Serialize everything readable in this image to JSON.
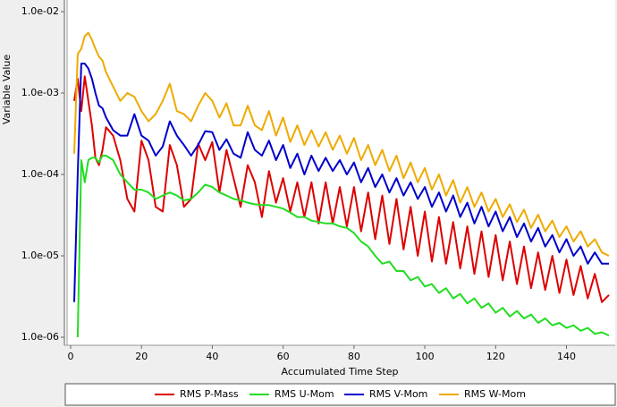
{
  "chart_data": {
    "type": "line",
    "y_label": "Variable Value",
    "x_label": "Accumulated Time Step",
    "y_log_scale": true,
    "xlim": [
      0,
      153
    ],
    "xticks": [
      0,
      20,
      40,
      60,
      80,
      100,
      120,
      140
    ],
    "ylim": [
      1e-06,
      0.01
    ],
    "yticks": [
      {
        "value": 0.01,
        "label": "1.0e-02"
      },
      {
        "value": 0.001,
        "label": "1.0e-03"
      },
      {
        "value": 0.0001,
        "label": "1.0e-04"
      },
      {
        "value": 1e-05,
        "label": "1.0e-05"
      },
      {
        "value": 1e-06,
        "label": "1.0e-06"
      }
    ],
    "legend_position": "bottom",
    "x": [
      1,
      2,
      3,
      4,
      5,
      6,
      7,
      8,
      9,
      10,
      12,
      14,
      16,
      18,
      20,
      22,
      24,
      26,
      28,
      30,
      32,
      34,
      36,
      38,
      40,
      42,
      44,
      46,
      48,
      50,
      52,
      54,
      56,
      58,
      60,
      62,
      64,
      66,
      68,
      70,
      72,
      74,
      76,
      78,
      80,
      82,
      84,
      86,
      88,
      90,
      92,
      94,
      96,
      98,
      100,
      102,
      104,
      106,
      108,
      110,
      112,
      114,
      116,
      118,
      120,
      122,
      124,
      126,
      128,
      130,
      132,
      134,
      136,
      138,
      140,
      142,
      144,
      146,
      148,
      150,
      152
    ],
    "series": [
      {
        "name": "RMS P-Mass",
        "color": "#dd0000",
        "values": [
          0.0008,
          0.0015,
          0.0006,
          0.0016,
          0.0008,
          0.0004,
          0.00016,
          0.00013,
          0.0002,
          0.00038,
          0.0003,
          0.00015,
          5e-05,
          3.5e-05,
          0.00026,
          0.00015,
          4e-05,
          3.5e-05,
          0.00023,
          0.00013,
          4e-05,
          5e-05,
          0.00024,
          0.00015,
          0.00025,
          6e-05,
          0.0002,
          9e-05,
          4e-05,
          0.00013,
          8e-05,
          3e-05,
          0.00011,
          4.5e-05,
          9e-05,
          3.5e-05,
          8e-05,
          3e-05,
          8e-05,
          2.5e-05,
          8e-05,
          2.5e-05,
          7e-05,
          2.3e-05,
          7e-05,
          2e-05,
          6e-05,
          1.6e-05,
          5.5e-05,
          1.4e-05,
          5e-05,
          1.2e-05,
          4e-05,
          1e-05,
          3.5e-05,
          8.5e-06,
          3e-05,
          8e-06,
          2.6e-05,
          7e-06,
          2.3e-05,
          6e-06,
          2e-05,
          5.5e-06,
          1.8e-05,
          5e-06,
          1.5e-05,
          4.5e-06,
          1.3e-05,
          4e-06,
          1.1e-05,
          3.8e-06,
          1e-05,
          3.5e-06,
          9e-06,
          3.3e-06,
          7.5e-06,
          3e-06,
          6e-06,
          2.7e-06,
          3.3e-06
        ]
      },
      {
        "name": "RMS U-Mom",
        "color": "#22dd22",
        "values": [
          null,
          1e-06,
          0.00015,
          8e-05,
          0.00015,
          0.00016,
          0.00016,
          0.00014,
          0.00017,
          0.00017,
          0.00015,
          0.0001,
          8e-05,
          6.5e-05,
          6.5e-05,
          6e-05,
          5e-05,
          5.5e-05,
          6e-05,
          5.5e-05,
          4.8e-05,
          5e-05,
          6e-05,
          7.5e-05,
          7e-05,
          6e-05,
          5.5e-05,
          5e-05,
          4.8e-05,
          4.5e-05,
          4.3e-05,
          4.2e-05,
          4.2e-05,
          4e-05,
          3.8e-05,
          3.4e-05,
          3e-05,
          3e-05,
          2.7e-05,
          2.6e-05,
          2.5e-05,
          2.5e-05,
          2.3e-05,
          2.2e-05,
          1.9e-05,
          1.5e-05,
          1.3e-05,
          1e-05,
          8e-06,
          8.5e-06,
          6.5e-06,
          6.5e-06,
          5e-06,
          5.5e-06,
          4.2e-06,
          4.5e-06,
          3.5e-06,
          4e-06,
          3e-06,
          3.4e-06,
          2.6e-06,
          3e-06,
          2.3e-06,
          2.6e-06,
          2e-06,
          2.3e-06,
          1.8e-06,
          2.1e-06,
          1.7e-06,
          1.9e-06,
          1.5e-06,
          1.7e-06,
          1.4e-06,
          1.5e-06,
          1.3e-06,
          1.4e-06,
          1.2e-06,
          1.3e-06,
          1.1e-06,
          1.15e-06,
          1.05e-06
        ]
      },
      {
        "name": "RMS V-Mom",
        "color": "#0000cc",
        "values": [
          2.7e-06,
          0.0001,
          0.0023,
          0.0023,
          0.002,
          0.0015,
          0.001,
          0.0007,
          0.00065,
          0.0005,
          0.00035,
          0.0003,
          0.0003,
          0.00055,
          0.0003,
          0.00026,
          0.00017,
          0.00022,
          0.00045,
          0.0003,
          0.00023,
          0.00017,
          0.00023,
          0.00034,
          0.00033,
          0.0002,
          0.00027,
          0.00018,
          0.00016,
          0.00033,
          0.0002,
          0.00017,
          0.00026,
          0.00015,
          0.00023,
          0.00012,
          0.00018,
          0.0001,
          0.00017,
          0.00011,
          0.00016,
          0.00011,
          0.00015,
          0.0001,
          0.00014,
          8e-05,
          0.00012,
          7e-05,
          0.0001,
          6e-05,
          9e-05,
          5.5e-05,
          8e-05,
          5e-05,
          7e-05,
          4e-05,
          6e-05,
          3.5e-05,
          5.5e-05,
          3e-05,
          4.5e-05,
          2.5e-05,
          4e-05,
          2.3e-05,
          3.5e-05,
          2e-05,
          3e-05,
          1.7e-05,
          2.5e-05,
          1.5e-05,
          2.2e-05,
          1.3e-05,
          1.8e-05,
          1.1e-05,
          1.6e-05,
          1e-05,
          1.3e-05,
          8e-06,
          1.1e-05,
          8e-06,
          8e-06
        ]
      },
      {
        "name": "RMS W-Mom",
        "color": "#eeaa00",
        "values": [
          0.00018,
          0.003,
          0.0035,
          0.005,
          0.0055,
          0.0045,
          0.0035,
          0.0028,
          0.0025,
          0.0018,
          0.0012,
          0.0008,
          0.001,
          0.0009,
          0.0006,
          0.00045,
          0.00055,
          0.0008,
          0.0013,
          0.0006,
          0.00055,
          0.00045,
          0.0007,
          0.001,
          0.0008,
          0.0005,
          0.00075,
          0.0004,
          0.0004,
          0.0007,
          0.0004,
          0.00035,
          0.0006,
          0.0003,
          0.0005,
          0.00025,
          0.0004,
          0.00023,
          0.00035,
          0.00022,
          0.00033,
          0.0002,
          0.0003,
          0.00018,
          0.00028,
          0.00015,
          0.00023,
          0.00013,
          0.0002,
          0.00011,
          0.00017,
          9e-05,
          0.00014,
          8e-05,
          0.00012,
          6.5e-05,
          0.0001,
          5.5e-05,
          8.5e-05,
          4.5e-05,
          7e-05,
          4e-05,
          6e-05,
          3.5e-05,
          5e-05,
          3e-05,
          4.3e-05,
          2.6e-05,
          3.7e-05,
          2.2e-05,
          3.2e-05,
          2e-05,
          2.7e-05,
          1.7e-05,
          2.3e-05,
          1.5e-05,
          2e-05,
          1.3e-05,
          1.6e-05,
          1.1e-05,
          1e-05
        ]
      }
    ]
  }
}
